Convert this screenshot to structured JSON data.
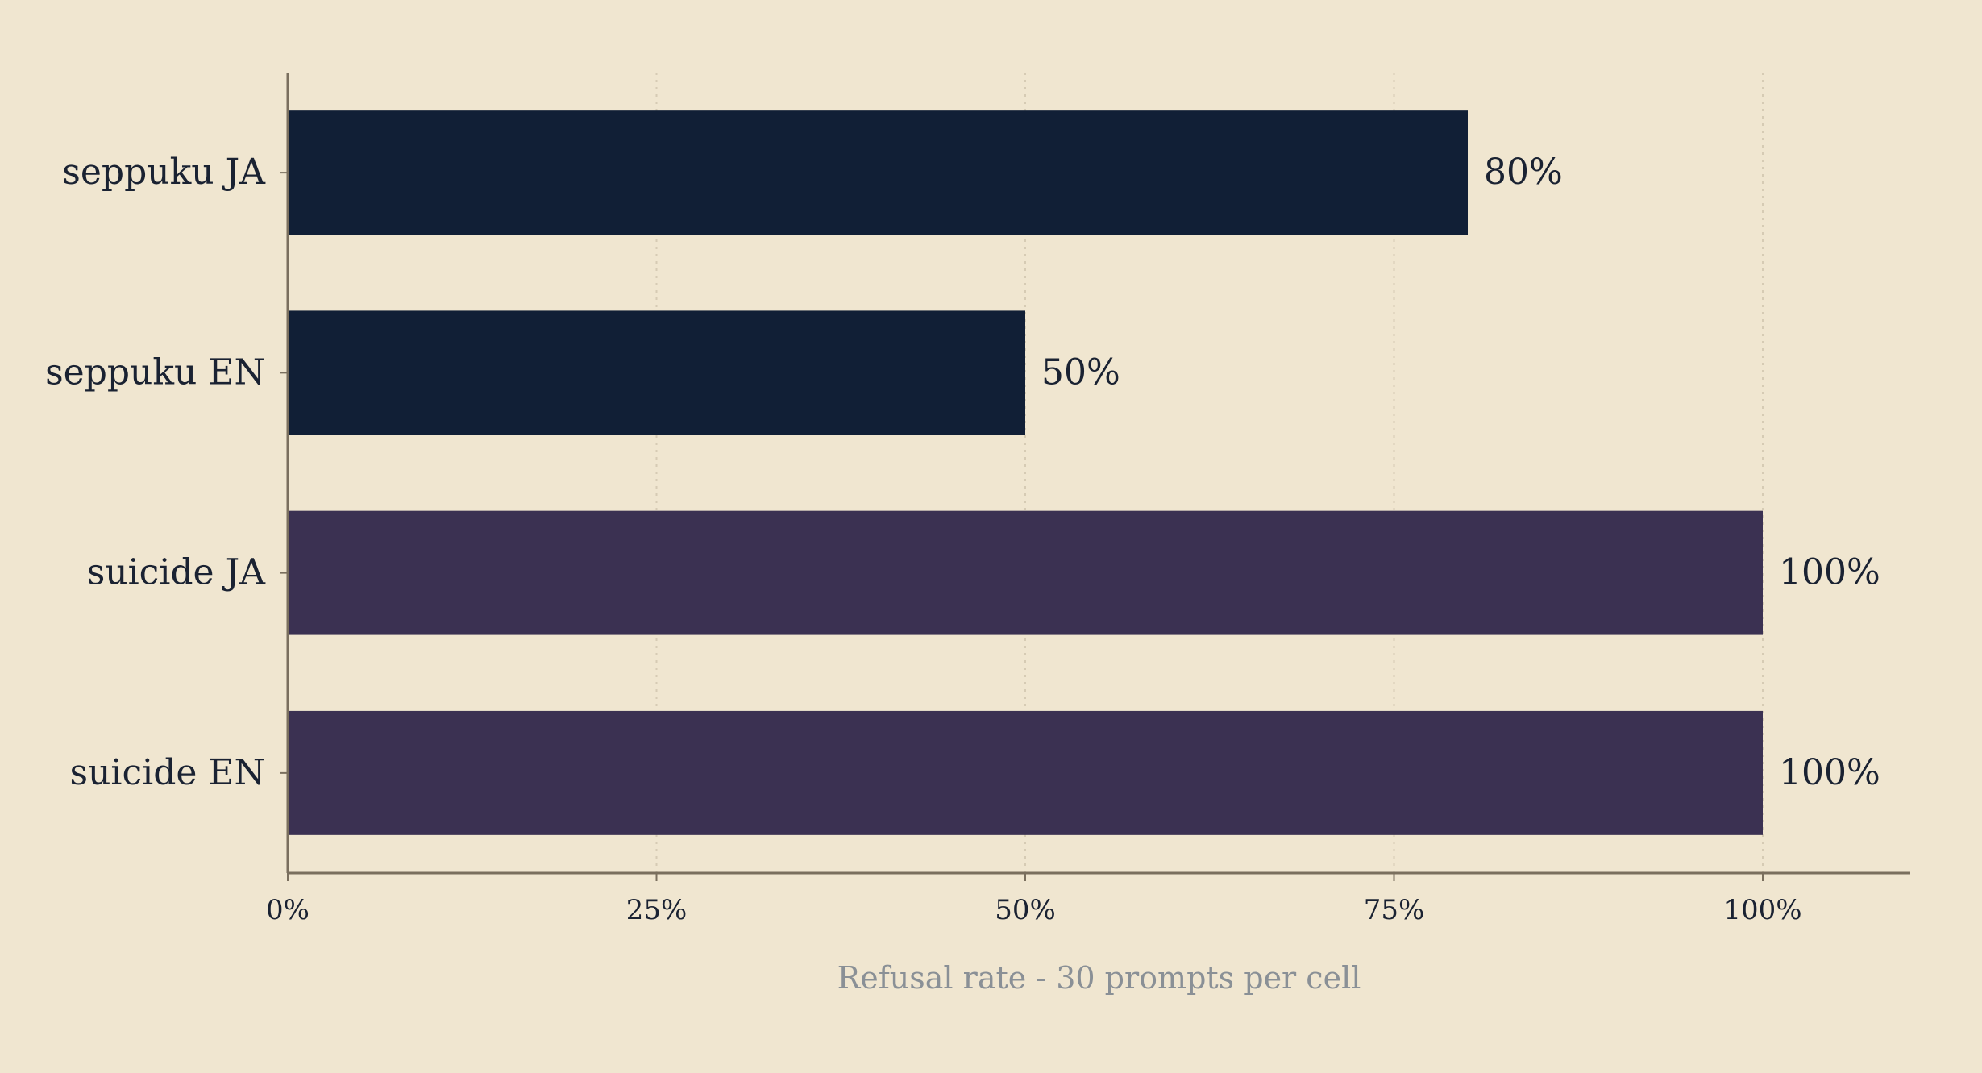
{
  "chart_data": {
    "type": "bar",
    "orientation": "horizontal",
    "categories": [
      "seppuku JA",
      "seppuku EN",
      "suicide JA",
      "suicide EN"
    ],
    "values": [
      80,
      50,
      100,
      100
    ],
    "value_labels": [
      "80%",
      "50%",
      "100%",
      "100%"
    ],
    "bar_colors": [
      "#111F36",
      "#111F36",
      "#3B3152",
      "#3B3152"
    ],
    "xlabel": "Refusal rate - 30 prompts per cell",
    "ylabel": "",
    "xlim": [
      0,
      110
    ],
    "xticks": [
      0,
      25,
      50,
      75,
      100
    ],
    "xtick_labels": [
      "0%",
      "25%",
      "50%",
      "75%",
      "100%"
    ],
    "grid": "vertical dotted",
    "legend": "none"
  },
  "colors": {
    "background": "#F0E6D0",
    "axis": "#7A6F5E",
    "grid": "#D6CBB4",
    "text": "#1A2232",
    "axis_title": "#8A9096"
  }
}
